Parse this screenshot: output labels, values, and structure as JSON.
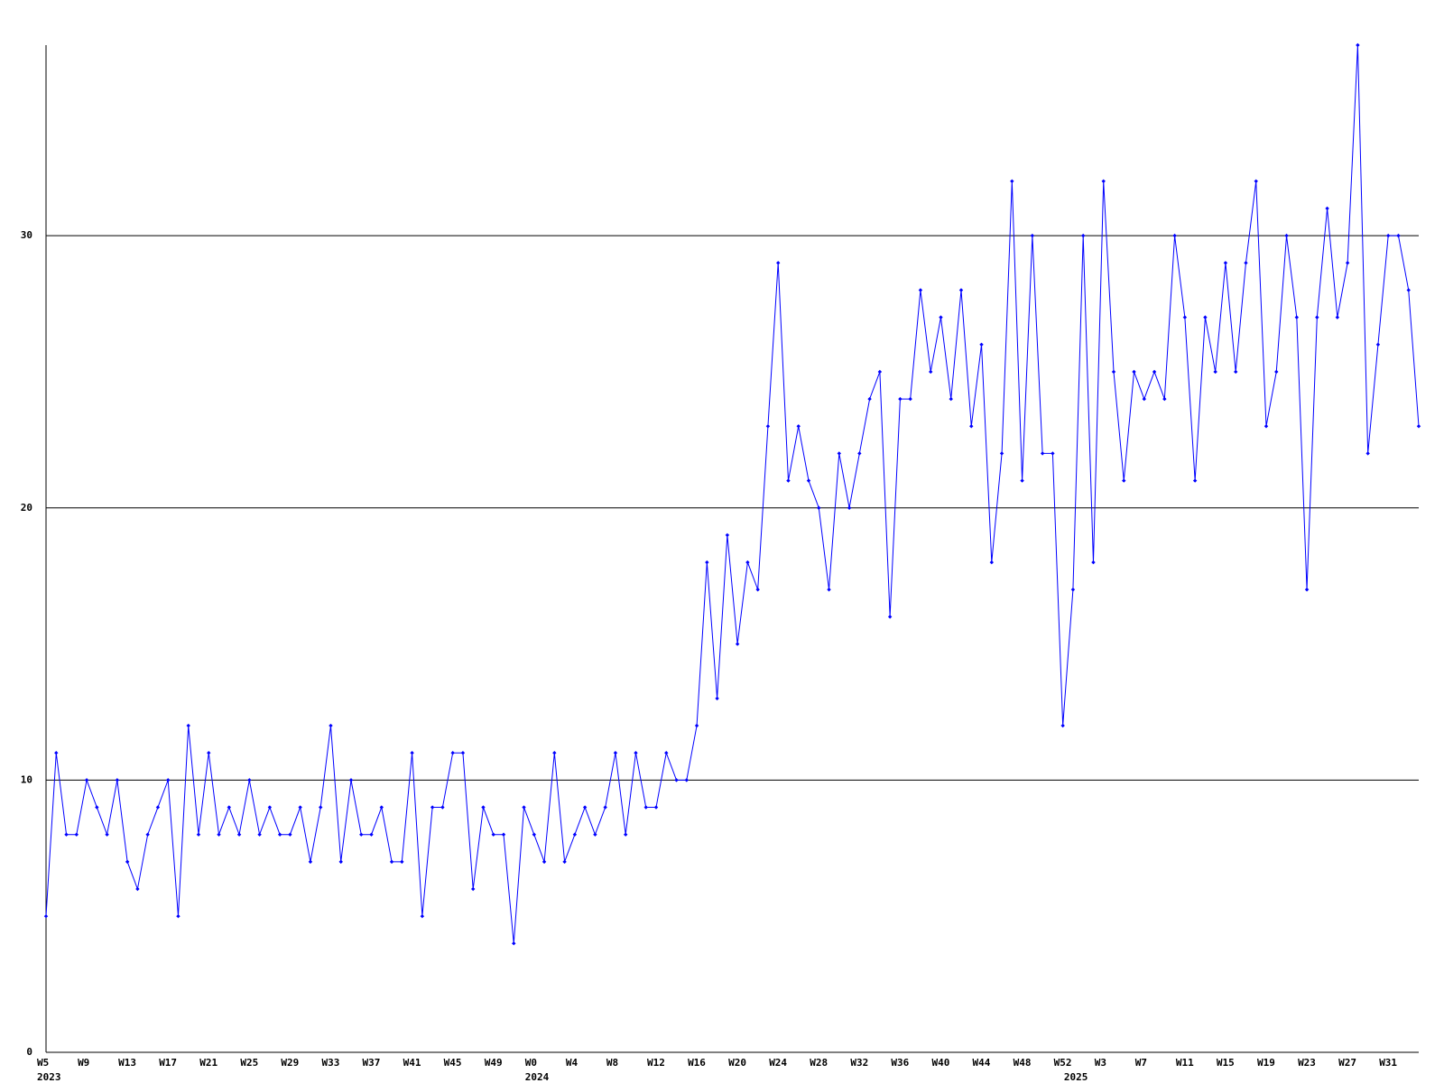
{
  "chart_data": {
    "type": "line",
    "color": "#0000ff",
    "grid": true,
    "ylim": [
      0,
      37
    ],
    "yticks": [
      0,
      10,
      20,
      30
    ],
    "categories": [
      "W5",
      null,
      null,
      null,
      "W9",
      null,
      null,
      null,
      "W13",
      null,
      null,
      null,
      "W17",
      null,
      null,
      null,
      "W21",
      null,
      null,
      null,
      "W25",
      null,
      null,
      null,
      "W29",
      null,
      null,
      null,
      "W33",
      null,
      null,
      null,
      "W37",
      null,
      null,
      null,
      "W41",
      null,
      null,
      null,
      "W45",
      null,
      null,
      null,
      "W49",
      null,
      null,
      null,
      "W0",
      null,
      null,
      null,
      "W4",
      null,
      null,
      null,
      "W8",
      null,
      null,
      null,
      "W12",
      null,
      null,
      null,
      "W16",
      null,
      null,
      null,
      "W20",
      null,
      null,
      null,
      "W24",
      null,
      null,
      null,
      "W28",
      null,
      null,
      null,
      "W32",
      null,
      null,
      null,
      "W36",
      null,
      null,
      null,
      "W40",
      null,
      null,
      null,
      "W44",
      null,
      null,
      null,
      "W48",
      null,
      null,
      null,
      "W52",
      null,
      null,
      null,
      "W3",
      null,
      null,
      null,
      "W7",
      null,
      null,
      null,
      "W11",
      null,
      null,
      null,
      "W15",
      null,
      null,
      null,
      "W19",
      null,
      null,
      null,
      "W23",
      null,
      null,
      null,
      "W27",
      null,
      null,
      null,
      "W31",
      null,
      null,
      null
    ],
    "years": [
      "2023",
      null,
      null,
      null,
      null,
      null,
      null,
      null,
      null,
      null,
      null,
      null,
      null,
      null,
      null,
      null,
      null,
      null,
      null,
      null,
      null,
      null,
      null,
      null,
      null,
      null,
      null,
      null,
      null,
      null,
      null,
      null,
      null,
      null,
      null,
      null,
      null,
      null,
      null,
      null,
      null,
      null,
      null,
      null,
      null,
      null,
      null,
      null,
      "2024",
      null,
      null,
      null,
      null,
      null,
      null,
      null,
      null,
      null,
      null,
      null,
      null,
      null,
      null,
      null,
      null,
      null,
      null,
      null,
      null,
      null,
      null,
      null,
      null,
      null,
      null,
      null,
      null,
      null,
      null,
      null,
      null,
      null,
      null,
      null,
      null,
      null,
      null,
      null,
      null,
      null,
      null,
      null,
      null,
      null,
      null,
      null,
      null,
      null,
      null,
      null,
      null,
      "2025",
      null,
      null,
      null,
      null,
      null,
      null,
      null,
      null,
      null,
      null,
      null,
      null,
      null,
      null,
      null,
      null,
      null,
      null,
      null,
      null,
      null,
      null,
      null,
      null,
      null,
      null,
      null,
      null,
      null,
      null,
      null,
      null,
      null,
      null
    ],
    "values": [
      5,
      11,
      8,
      8,
      10,
      9,
      8,
      10,
      7,
      6,
      8,
      9,
      10,
      5,
      12,
      8,
      11,
      8,
      9,
      8,
      10,
      8,
      9,
      8,
      8,
      9,
      7,
      9,
      12,
      7,
      10,
      8,
      8,
      9,
      7,
      7,
      11,
      5,
      9,
      9,
      11,
      11,
      6,
      9,
      8,
      8,
      4,
      9,
      8,
      7,
      11,
      7,
      8,
      9,
      8,
      9,
      11,
      8,
      11,
      9,
      9,
      11,
      10,
      10,
      12,
      18,
      13,
      19,
      15,
      18,
      17,
      23,
      29,
      21,
      23,
      21,
      20,
      17,
      22,
      20,
      22,
      24,
      25,
      16,
      24,
      24,
      28,
      25,
      27,
      24,
      28,
      23,
      26,
      18,
      22,
      32,
      21,
      30,
      22,
      22,
      12,
      17,
      30,
      18,
      32,
      25,
      21,
      25,
      24,
      25,
      24,
      30,
      27,
      21,
      27,
      25,
      29,
      25,
      29,
      32,
      23,
      25,
      30,
      27,
      17,
      27,
      31,
      27,
      29,
      37,
      22,
      26,
      30,
      30,
      28,
      23
    ]
  }
}
